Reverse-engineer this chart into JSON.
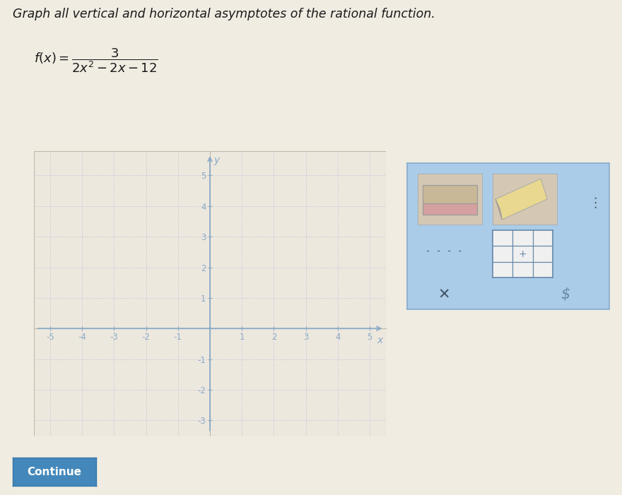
{
  "title": "Graph all vertical and horizontal asymptotes of the rational function.",
  "xlim": [
    -5.5,
    5.5
  ],
  "ylim": [
    -3.5,
    5.8
  ],
  "page_bg": "#f0ece2",
  "plot_bg": "#ede8de",
  "grid_color": "#c0bcd8",
  "axis_color": "#8aaac8",
  "tick_color": "#8aaac8",
  "text_color": "#1a1a1a",
  "panel_bg": "#aacce8",
  "panel_border": "#88aacc",
  "btn_color": "#4488bb"
}
